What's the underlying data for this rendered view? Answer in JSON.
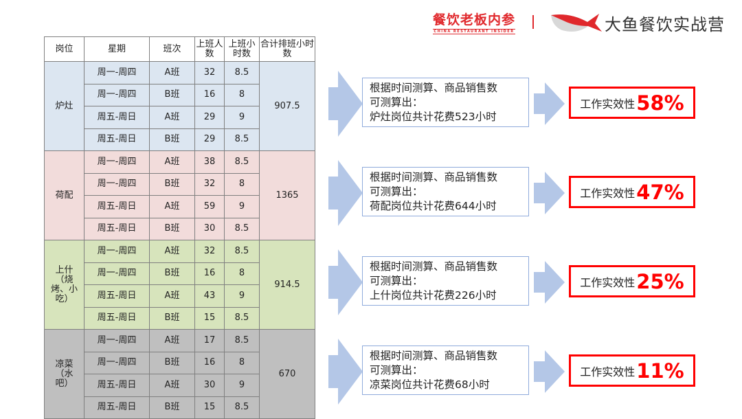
{
  "header": {
    "logo_left": "餐饮老板内参",
    "logo_left_sub": "CHINA RESTAURANT INSIDER",
    "logo_right": "大鱼餐饮实战营"
  },
  "table": {
    "headers": [
      "岗位",
      "星期",
      "班次",
      "上班人数",
      "上班小时数",
      "合计排班小时数"
    ],
    "groups": [
      {
        "post": "炉灶",
        "total": "907.5",
        "rows": [
          [
            "周一-周四",
            "A班",
            "32",
            "8.5"
          ],
          [
            "周一-周四",
            "B班",
            "16",
            "8"
          ],
          [
            "周五-周日",
            "A班",
            "29",
            "9"
          ],
          [
            "周五-周日",
            "B班",
            "29",
            "8.5"
          ]
        ]
      },
      {
        "post": "荷配",
        "total": "1365",
        "rows": [
          [
            "周一-周四",
            "A班",
            "38",
            "8.5"
          ],
          [
            "周一-周四",
            "B班",
            "32",
            "8"
          ],
          [
            "周五-周日",
            "A班",
            "59",
            "9"
          ],
          [
            "周五-周日",
            "B班",
            "30",
            "8.5"
          ]
        ]
      },
      {
        "post": "上什（烧烤、小吃）",
        "total": "914.5",
        "rows": [
          [
            "周一-周四",
            "A班",
            "32",
            "8.5"
          ],
          [
            "周一-周四",
            "B班",
            "16",
            "8"
          ],
          [
            "周五-周日",
            "A班",
            "43",
            "9"
          ],
          [
            "周五-周日",
            "B班",
            "15",
            "8.5"
          ]
        ]
      },
      {
        "post": "凉菜（水吧）",
        "total": "670",
        "rows": [
          [
            "周一-周四",
            "A班",
            "17",
            "8.5"
          ],
          [
            "周一-周四",
            "B班",
            "16",
            "8"
          ],
          [
            "周五-周日",
            "A班",
            "30",
            "9"
          ],
          [
            "周五-周日",
            "B班",
            "15",
            "8.5"
          ]
        ]
      }
    ]
  },
  "colors": {
    "g0": "#dce6f1",
    "g1": "#f2dcdb",
    "g2": "#d7e4bc",
    "g3": "#bfbfbf",
    "accent": "#ff0000",
    "arrow": "#b4c7e7"
  },
  "results": [
    {
      "line1": "根据时间测算、商品销售数",
      "line2": "可测算出：",
      "line3": "炉灶岗位共计花费523小时",
      "label": "工作实效性",
      "pct": "58%"
    },
    {
      "line1": "根据时间测算、商品销售数",
      "line2": "可测算出：",
      "line3": "荷配岗位共计花费644小时",
      "label": "工作实效性",
      "pct": "47%"
    },
    {
      "line1": "根据时间测算、商品销售数",
      "line2": "可测算出：",
      "line3": "上什岗位共计花费226小时",
      "label": "工作实效性",
      "pct": "25%"
    },
    {
      "line1": "根据时间测算、商品销售数",
      "line2": "可测算出：",
      "line3": "凉菜岗位共计花费68小时",
      "label": "工作实效性",
      "pct": "11%"
    }
  ]
}
